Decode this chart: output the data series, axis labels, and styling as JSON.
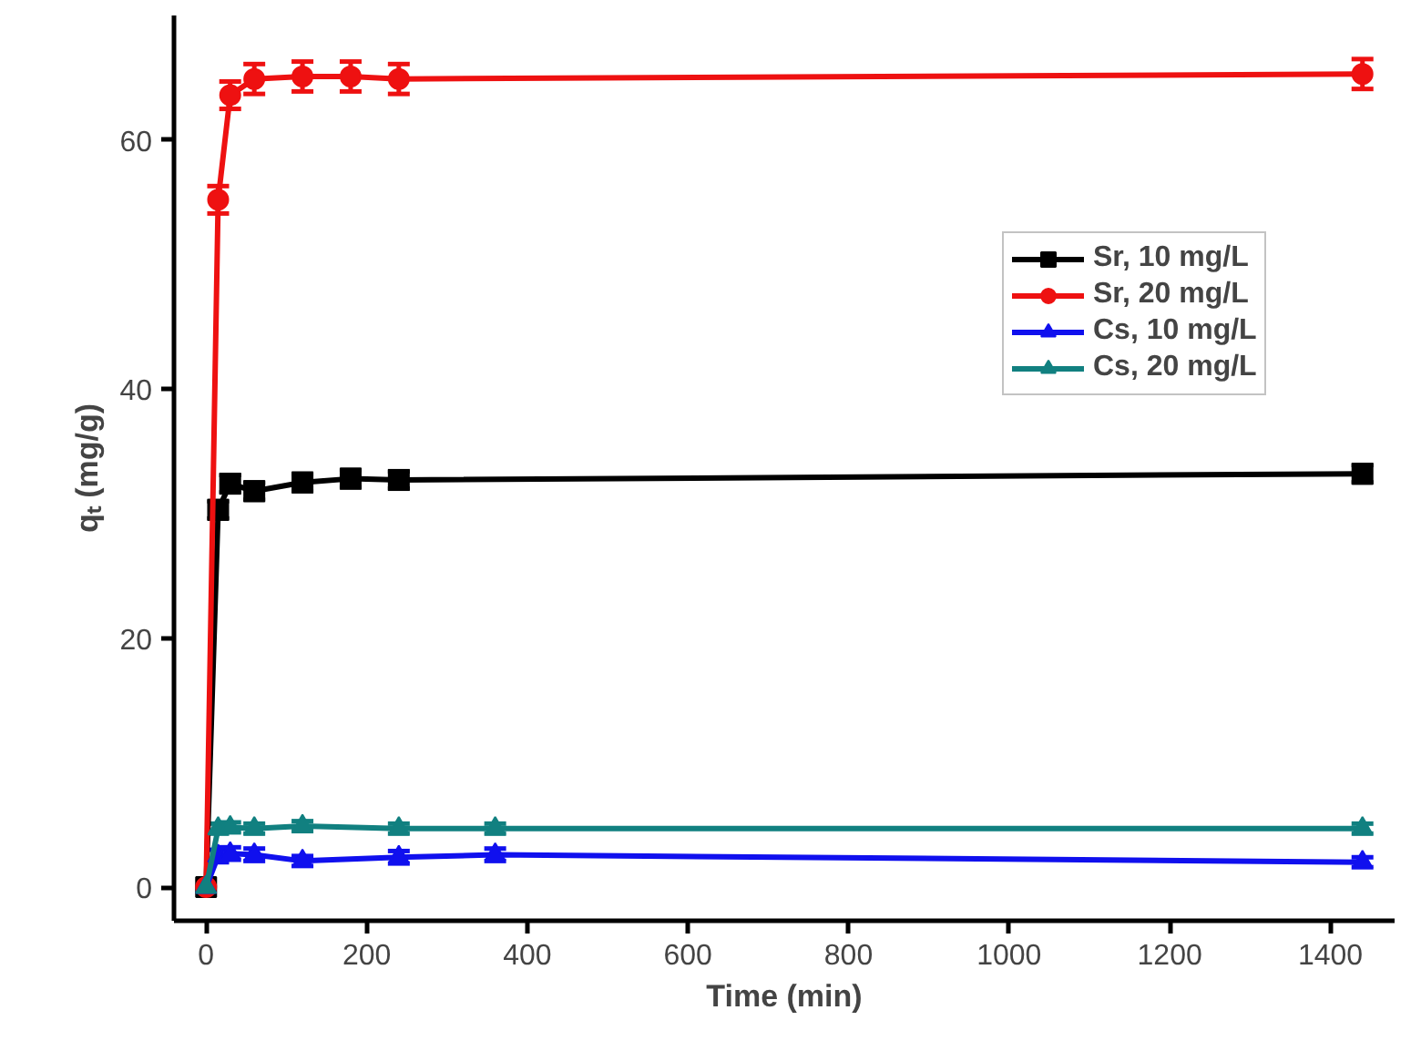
{
  "chart_data": {
    "type": "line",
    "xlabel": "Time (min)",
    "ylabel": "qₜ (mg/g)",
    "xlim": [
      -40,
      1480
    ],
    "ylim": [
      -2.7,
      70
    ],
    "xticks": [
      0,
      200,
      400,
      600,
      800,
      1000,
      1200,
      1400
    ],
    "yticks": [
      0,
      20,
      40,
      60
    ],
    "grid": false,
    "legend": "right",
    "line_style": "solid",
    "series": [
      {
        "name": "Sr, 10 mg/L",
        "color": "#000000",
        "marker": "square",
        "x": [
          0,
          15,
          30,
          60,
          120,
          180,
          240,
          1440
        ],
        "values": [
          0,
          30.3,
          32.4,
          31.8,
          32.5,
          32.8,
          32.7,
          33.2
        ],
        "errors": [
          null,
          0.7,
          0.7,
          0.7,
          0.7,
          0.7,
          0.7,
          0.7
        ]
      },
      {
        "name": "Sr, 20 mg/L",
        "color": "#ee1111",
        "marker": "circle",
        "x": [
          0,
          15,
          30,
          60,
          120,
          180,
          240,
          1440
        ],
        "values": [
          0,
          55.2,
          63.6,
          64.9,
          65.1,
          65.1,
          64.9,
          65.3
        ],
        "errors": [
          null,
          1.1,
          1.1,
          1.2,
          1.2,
          1.2,
          1.2,
          1.2
        ]
      },
      {
        "name": "Cs, 10 mg/L",
        "color": "#1010ee",
        "marker": "triangle",
        "x": [
          0,
          15,
          30,
          60,
          120,
          240,
          360,
          1440
        ],
        "values": [
          0,
          2.5,
          2.7,
          2.6,
          2.1,
          2.4,
          2.6,
          2.0
        ],
        "errors": [
          null,
          0.5,
          0.5,
          0.5,
          0.4,
          0.5,
          0.5,
          0.4
        ]
      },
      {
        "name": "Cs, 20 mg/L",
        "color": "#118080",
        "marker": "triangle",
        "x": [
          0,
          15,
          30,
          60,
          120,
          240,
          360,
          1440
        ],
        "values": [
          0,
          4.7,
          4.8,
          4.7,
          4.9,
          4.7,
          4.7,
          4.7
        ],
        "errors": [
          null,
          0.4,
          0.4,
          0.4,
          0.4,
          0.4,
          0.4,
          0.4
        ]
      }
    ]
  }
}
